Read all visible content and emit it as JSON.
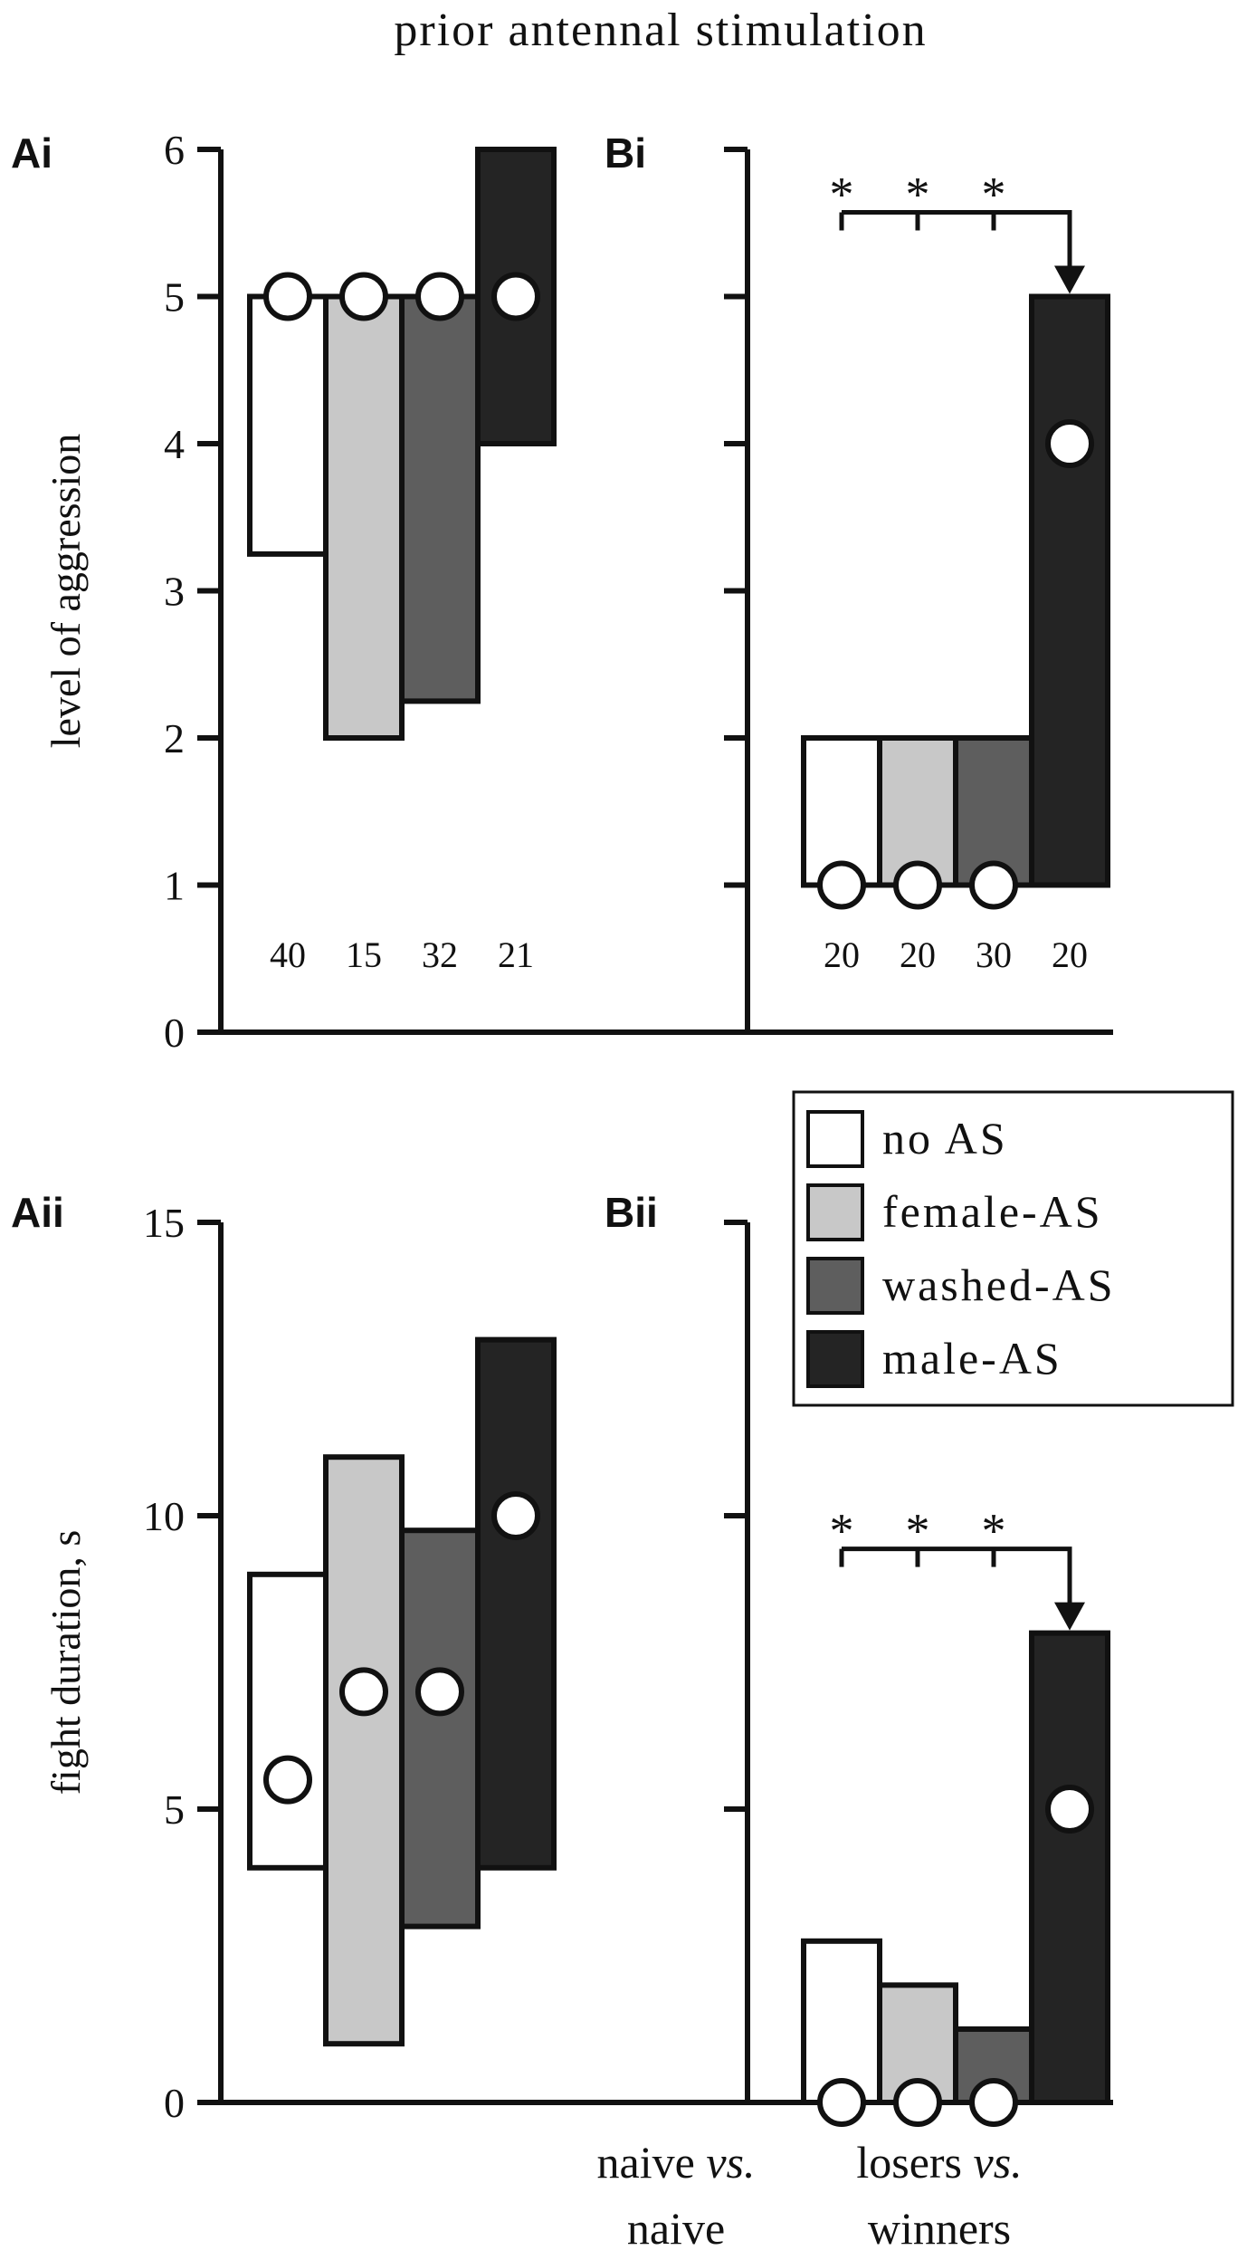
{
  "figure": {
    "title": "prior antennal stimulation",
    "legend": {
      "placement": "between-panels-right",
      "entries": [
        {
          "label": "no AS",
          "color": "#ffffff"
        },
        {
          "label": "female-AS",
          "color": "#c8c8c8"
        },
        {
          "label": "washed-AS",
          "color": "#5e5e5e"
        },
        {
          "label": "male-AS",
          "color": "#242424"
        }
      ]
    },
    "colors": {
      "axis": "#111111",
      "marker_fill": "#ffffff"
    }
  },
  "chart_data": [
    {
      "panel": "Ai",
      "type": "box-median",
      "ylabel": "level of aggression",
      "xlabel": "",
      "ylim": [
        0,
        6
      ],
      "yticks": [
        0,
        1,
        2,
        3,
        4,
        5,
        6
      ],
      "categories": [
        "no AS",
        "female-AS",
        "washed-AS",
        "male-AS"
      ],
      "lower": [
        3.25,
        2,
        2.25,
        4
      ],
      "upper": [
        5,
        5,
        5,
        6
      ],
      "median": [
        5,
        5,
        5,
        5
      ],
      "n": [
        "40",
        "15",
        "32",
        "21"
      ],
      "significance": null
    },
    {
      "panel": "Bi",
      "type": "box-median",
      "ylabel": "",
      "xlabel": "",
      "ylim": [
        0,
        6
      ],
      "yticks": [
        0,
        1,
        2,
        3,
        4,
        5,
        6
      ],
      "ytick_labels_shown": false,
      "categories": [
        "no AS",
        "female-AS",
        "washed-AS",
        "male-AS"
      ],
      "lower": [
        1,
        1,
        1,
        1
      ],
      "upper": [
        2,
        2,
        2,
        5
      ],
      "median": [
        1,
        1,
        1,
        4
      ],
      "n": [
        "20",
        "20",
        "30",
        "20"
      ],
      "significance": {
        "from": [
          0,
          1,
          2
        ],
        "to": 3,
        "marks": [
          "*",
          "*",
          "*"
        ]
      }
    },
    {
      "panel": "Aii",
      "type": "box-median",
      "ylabel": "fight duration, s",
      "xlabel": [
        "naive ",
        "vs.",
        " naive"
      ],
      "ylim": [
        0,
        15
      ],
      "yticks": [
        0,
        5,
        10,
        15
      ],
      "categories": [
        "no AS",
        "female-AS",
        "washed-AS",
        "male-AS"
      ],
      "lower": [
        4,
        1,
        3,
        4
      ],
      "upper": [
        9,
        11,
        9.75,
        13
      ],
      "median": [
        5.5,
        7,
        7,
        10
      ],
      "n": null,
      "significance": null
    },
    {
      "panel": "Bii",
      "type": "box-median",
      "ylabel": "",
      "xlabel": [
        "losers ",
        "vs.",
        " winners"
      ],
      "ylim": [
        0,
        15
      ],
      "yticks": [
        0,
        5,
        10,
        15
      ],
      "ytick_labels_shown": false,
      "categories": [
        "no AS",
        "female-AS",
        "washed-AS",
        "male-AS"
      ],
      "lower": [
        0,
        0,
        0,
        0
      ],
      "upper": [
        2.75,
        2,
        1.25,
        8
      ],
      "median": [
        0,
        0,
        0,
        5
      ],
      "n": null,
      "significance": {
        "from": [
          0,
          1,
          2
        ],
        "to": 3,
        "marks": [
          "*",
          "*",
          "*"
        ]
      }
    }
  ]
}
